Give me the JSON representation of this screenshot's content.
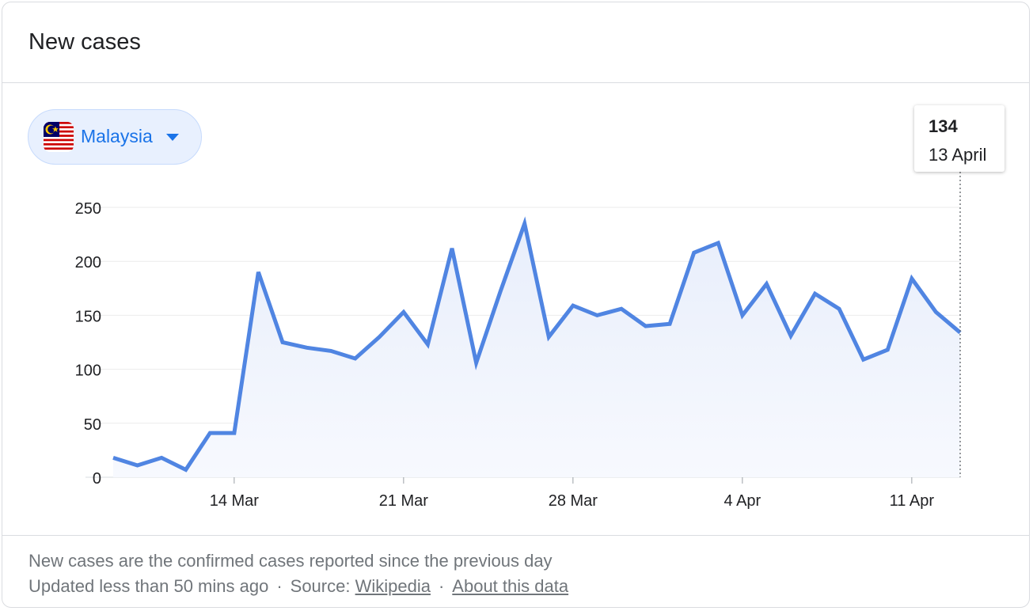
{
  "card": {
    "title": "New cases"
  },
  "selector": {
    "country": "Malaysia",
    "flag_icon": "malaysia-flag-icon",
    "caret_icon": "caret-down-icon"
  },
  "tooltip": {
    "value": "134",
    "date": "13 April"
  },
  "footer": {
    "note": "New cases are the confirmed cases reported since the previous day",
    "updated": "Updated less than 50 mins ago",
    "separator": "·",
    "source_label": "Source:",
    "source_link": "Wikipedia",
    "about_link": "About this data"
  },
  "colors": {
    "line": "#5085e2",
    "fill_top": "#e8eefb",
    "grid": "#ebebeb",
    "accent": "#1a73e8"
  },
  "chart_data": {
    "type": "area",
    "title": "New cases",
    "xlabel": "",
    "ylabel": "",
    "ylim": [
      0,
      250
    ],
    "y_ticks": [
      0,
      50,
      100,
      150,
      200,
      250
    ],
    "x_ticks": [
      {
        "date": "2020-03-14",
        "label": "14 Mar"
      },
      {
        "date": "2020-03-21",
        "label": "21 Mar"
      },
      {
        "date": "2020-03-28",
        "label": "28 Mar"
      },
      {
        "date": "2020-04-04",
        "label": "4 Apr"
      },
      {
        "date": "2020-04-11",
        "label": "11 Apr"
      }
    ],
    "grid": true,
    "legend": "none",
    "series": [
      {
        "x": [
          "2020-03-09",
          "2020-03-10",
          "2020-03-11",
          "2020-03-12",
          "2020-03-13",
          "2020-03-14",
          "2020-03-15",
          "2020-03-16",
          "2020-03-17",
          "2020-03-18",
          "2020-03-19",
          "2020-03-20",
          "2020-03-21",
          "2020-03-22",
          "2020-03-23",
          "2020-03-24",
          "2020-03-25",
          "2020-03-26",
          "2020-03-27",
          "2020-03-28",
          "2020-03-29",
          "2020-03-30",
          "2020-03-31",
          "2020-04-01",
          "2020-04-02",
          "2020-04-03",
          "2020-04-04",
          "2020-04-05",
          "2020-04-06",
          "2020-04-07",
          "2020-04-08",
          "2020-04-09",
          "2020-04-10",
          "2020-04-11",
          "2020-04-12",
          "2020-04-13"
        ],
        "values": [
          18,
          11,
          18,
          7,
          41,
          41,
          190,
          125,
          120,
          117,
          110,
          130,
          153,
          123,
          212,
          106,
          172,
          235,
          130,
          159,
          150,
          156,
          140,
          142,
          208,
          217,
          150,
          179,
          131,
          170,
          156,
          109,
          118,
          184,
          153,
          134
        ]
      }
    ],
    "highlight": {
      "date": "2020-04-13",
      "value": 134
    }
  }
}
